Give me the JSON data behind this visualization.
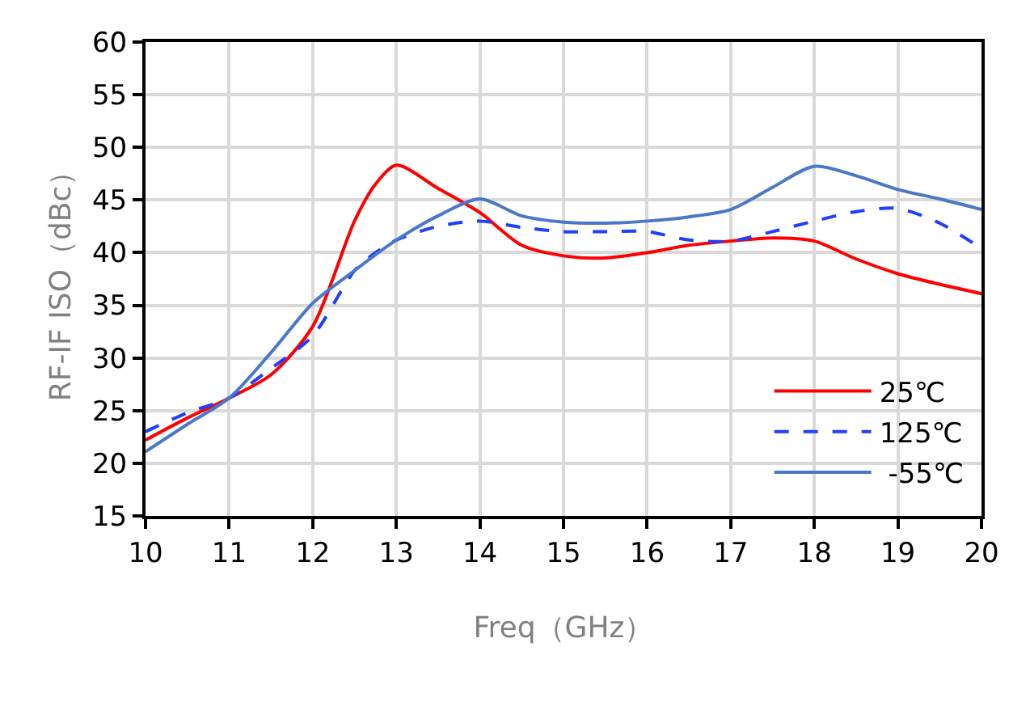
{
  "chart_data": {
    "type": "line",
    "xlabel": "Freq（GHz）",
    "ylabel": "RF-IF ISO（dBc）",
    "x": [
      10,
      10.5,
      11,
      11.5,
      12,
      12.5,
      12.75,
      13,
      13.5,
      14,
      14.5,
      15,
      15.5,
      16,
      16.5,
      17,
      17.5,
      18,
      18.5,
      19,
      19.5,
      20
    ],
    "series": [
      {
        "name": "25℃",
        "color": "#ff0000",
        "line_style": "solid",
        "values": [
          22.2,
          24.3,
          26.2,
          28.4,
          33.0,
          43.0,
          46.5,
          48.3,
          46.1,
          43.8,
          40.7,
          39.7,
          39.5,
          40.0,
          40.7,
          41.1,
          41.4,
          41.1,
          39.4,
          38.0,
          37.0,
          36.1
        ]
      },
      {
        "name": "125℃",
        "color": "#1f3fff",
        "line_style": "dashed",
        "values": [
          23.0,
          24.8,
          26.2,
          29.0,
          32.1,
          38.3,
          40.0,
          41.2,
          42.5,
          43.0,
          42.4,
          42.0,
          42.0,
          42.0,
          41.2,
          41.1,
          42.0,
          43.0,
          43.9,
          44.2,
          42.8,
          40.4
        ]
      },
      {
        "name": " -55℃",
        "color": "#4a78c8",
        "line_style": "solid",
        "values": [
          21.1,
          23.7,
          26.2,
          30.5,
          35.2,
          38.3,
          39.8,
          41.2,
          43.5,
          45.1,
          43.5,
          42.9,
          42.8,
          43.0,
          43.4,
          44.1,
          46.2,
          48.2,
          47.3,
          46.0,
          45.1,
          44.1
        ]
      }
    ],
    "xlim": [
      10,
      20
    ],
    "xticks": [
      10,
      11,
      12,
      13,
      14,
      15,
      16,
      17,
      18,
      19,
      20
    ],
    "ylim": [
      15,
      60
    ],
    "yticks": [
      15,
      20,
      25,
      30,
      35,
      40,
      45,
      50,
      55,
      60
    ],
    "grid": true,
    "legend": "bottom right",
    "marker": "none"
  }
}
